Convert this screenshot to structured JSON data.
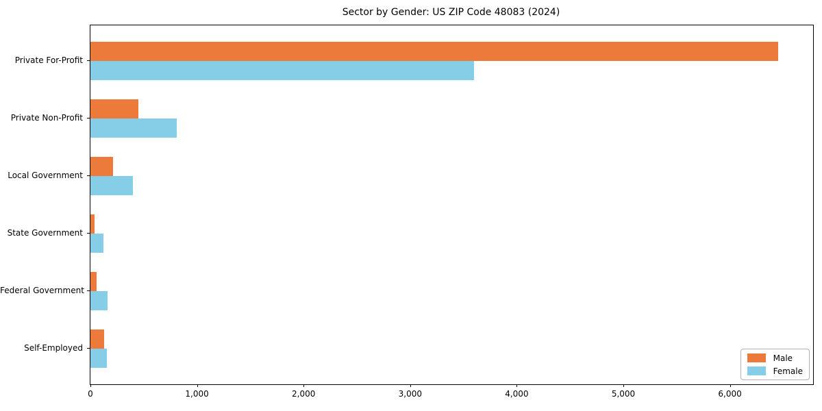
{
  "window": {
    "background": "#ffffff"
  },
  "chart_data": {
    "type": "bar",
    "orientation": "horizontal",
    "title": "Sector by Gender: US ZIP Code 48083 (2024)",
    "categories": [
      "Private For-Profit",
      "Private Non-Profit",
      "Local Government",
      "State Government",
      "Federal Government",
      "Self-Employed"
    ],
    "series": [
      {
        "name": "Male",
        "color": "#ec7a3b",
        "values": [
          6450,
          450,
          210,
          40,
          55,
          125
        ]
      },
      {
        "name": "Female",
        "color": "#86cde8",
        "values": [
          3600,
          810,
          400,
          120,
          160,
          155
        ]
      }
    ],
    "xlabel": "",
    "ylabel": "",
    "xlim": [
      0,
      6780
    ],
    "x_ticks": [
      {
        "value": 0,
        "label": "0"
      },
      {
        "value": 1000,
        "label": "1,000"
      },
      {
        "value": 2000,
        "label": "2,000"
      },
      {
        "value": 3000,
        "label": "3,000"
      },
      {
        "value": 4000,
        "label": "4,000"
      },
      {
        "value": 5000,
        "label": "5,000"
      },
      {
        "value": 6000,
        "label": "6,000"
      }
    ],
    "grid": false,
    "legend_position": "lower right"
  }
}
